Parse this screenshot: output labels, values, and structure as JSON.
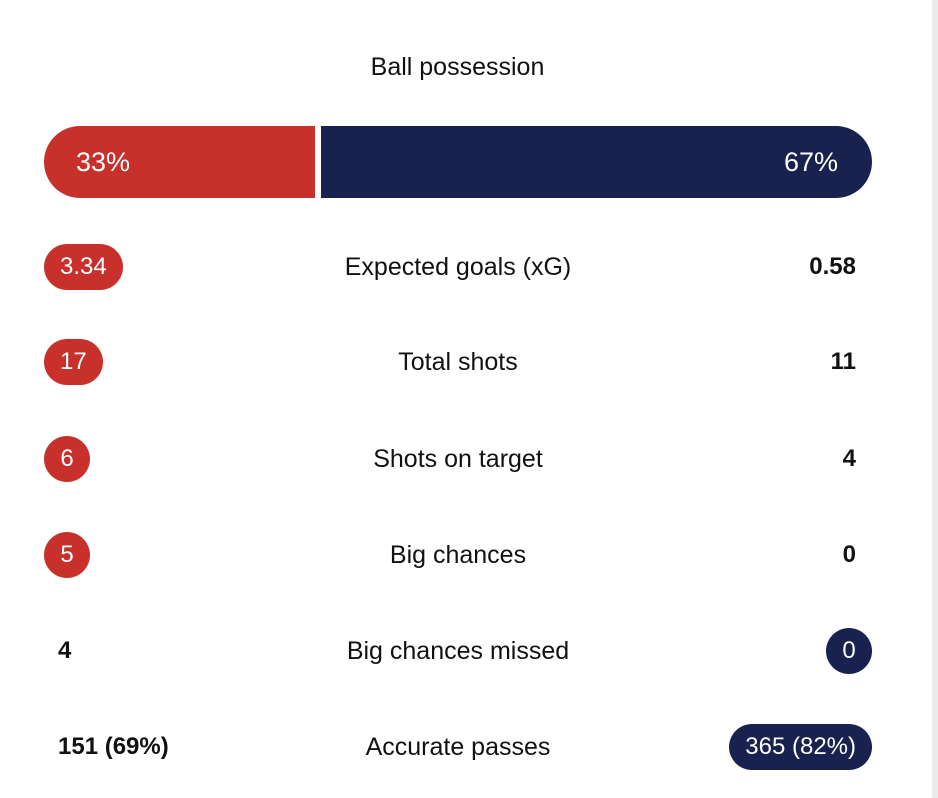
{
  "colors": {
    "home": "#c8302c",
    "away": "#19224f",
    "text": "#111111"
  },
  "possession": {
    "title": "Ball possession",
    "home_label": "33%",
    "away_label": "67%",
    "home_percent": 33,
    "away_percent": 67
  },
  "stats": [
    {
      "label": "Expected goals (xG)",
      "home": "3.34",
      "away": "0.58",
      "highlight": "home"
    },
    {
      "label": "Total shots",
      "home": "17",
      "away": "11",
      "highlight": "home"
    },
    {
      "label": "Shots on target",
      "home": "6",
      "away": "4",
      "highlight": "home"
    },
    {
      "label": "Big chances",
      "home": "5",
      "away": "0",
      "highlight": "home"
    },
    {
      "label": "Big chances missed",
      "home": "4",
      "away": "0",
      "highlight": "away"
    },
    {
      "label": "Accurate passes",
      "home": "151 (69%)",
      "away": "365 (82%)",
      "highlight": "away"
    }
  ]
}
